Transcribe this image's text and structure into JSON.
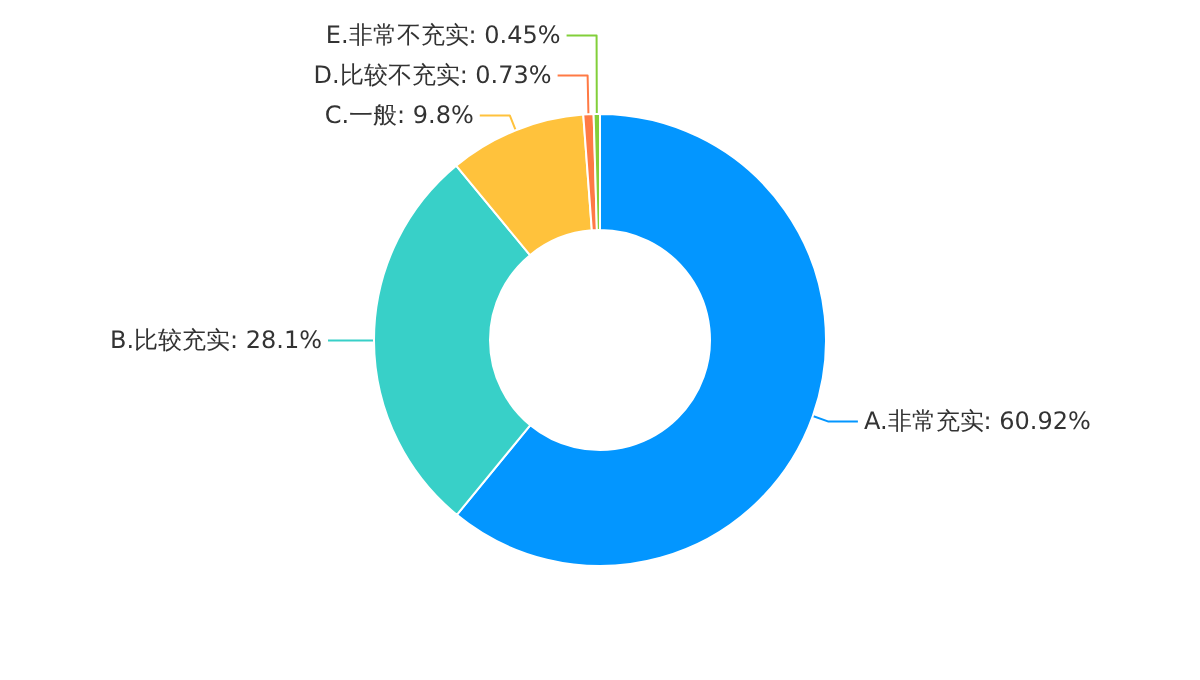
{
  "chart_data": {
    "type": "donut",
    "categories": [
      "A.非常充实",
      "B.比较充实",
      "C.一般",
      "D.比较不充实",
      "E.非常不充实"
    ],
    "values": [
      60.92,
      28.1,
      9.8,
      0.73,
      0.45
    ],
    "value_labels": [
      "60.92%",
      "28.1%",
      "9.8%",
      "0.73%",
      "0.45%"
    ],
    "colors": [
      "#0396ff",
      "#38d0c8",
      "#ffc23c",
      "#ff7a45",
      "#82cf3a"
    ]
  }
}
